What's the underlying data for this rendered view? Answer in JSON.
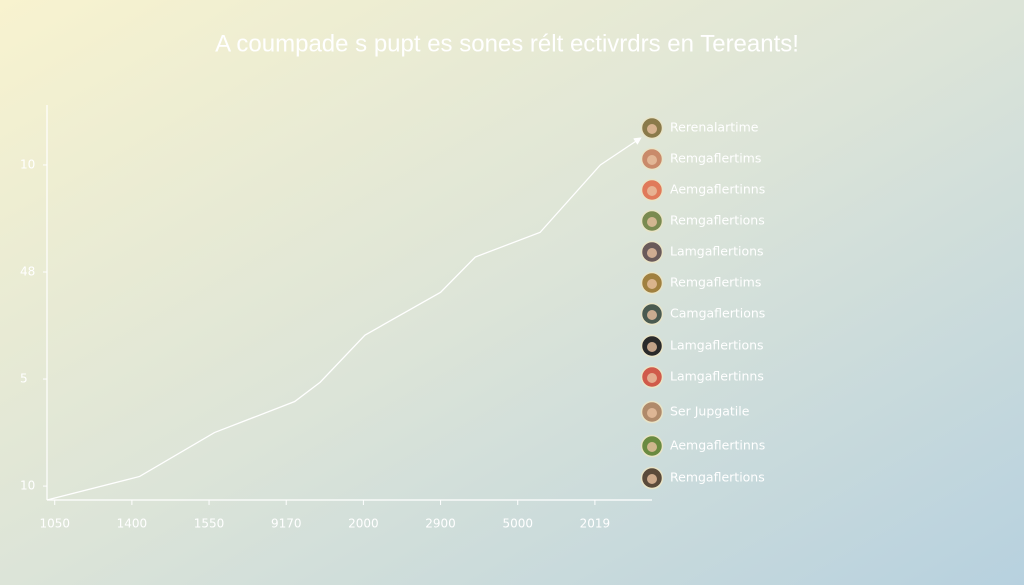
{
  "chart_data": {
    "type": "line",
    "title": "A coumpade s pupt es sones rélt ectivrdrs en Tereants!",
    "x": [
      -0.1,
      1.1,
      2.07,
      3.11,
      3.44,
      4.02,
      5.0,
      5.45,
      6.29,
      7.07,
      7.59
    ],
    "series": [
      {
        "color": "#ffffff",
        "values": [
          -0.13,
          0.09,
          0.5,
          0.79,
          0.97,
          1.41,
          1.81,
          2.14,
          2.37,
          3.0,
          3.25
        ]
      }
    ],
    "xlim": [
      -0.1,
      7.74
    ],
    "xticks": [
      {
        "value": 0,
        "label": "1050"
      },
      {
        "value": 1,
        "label": "1400"
      },
      {
        "value": 2,
        "label": "1550"
      },
      {
        "value": 3,
        "label": "9170"
      },
      {
        "value": 4,
        "label": "2000"
      },
      {
        "value": 5,
        "label": "2900"
      },
      {
        "value": 6,
        "label": "5000"
      },
      {
        "value": 7,
        "label": "2019"
      }
    ],
    "ylim": [
      -0.13,
      3.56
    ],
    "yticks": [
      {
        "value": 0,
        "label": "10"
      },
      {
        "value": 1,
        "label": "5"
      },
      {
        "value": 2,
        "label": "48"
      },
      {
        "value": 3,
        "label": "10"
      }
    ],
    "legend": [
      {
        "label": "Rerenalartime",
        "color": "#8a7a4a"
      },
      {
        "label": "Remgaflertims",
        "color": "#c98a6a"
      },
      {
        "label": "Aemgaflertinns",
        "color": "#e07a5a"
      },
      {
        "label": "Remgaflertions",
        "color": "#7a8a50"
      },
      {
        "label": "Lamgaflertions",
        "color": "#6a5a5a"
      },
      {
        "label": "Remgaflertims",
        "color": "#a08040"
      },
      {
        "label": "Camgaflertions",
        "color": "#4a5a50"
      },
      {
        "label": "Lamgaflertions",
        "color": "#2a2a2a"
      },
      {
        "label": "Lamgaflertinns",
        "color": "#d05a4a"
      },
      {
        "label": "Ser Jupgatile",
        "color": "#b08a6a"
      },
      {
        "label": "Aemgaflertinns",
        "color": "#6a8a40"
      },
      {
        "label": "Remgaflertions",
        "color": "#5a4a3a"
      }
    ]
  }
}
